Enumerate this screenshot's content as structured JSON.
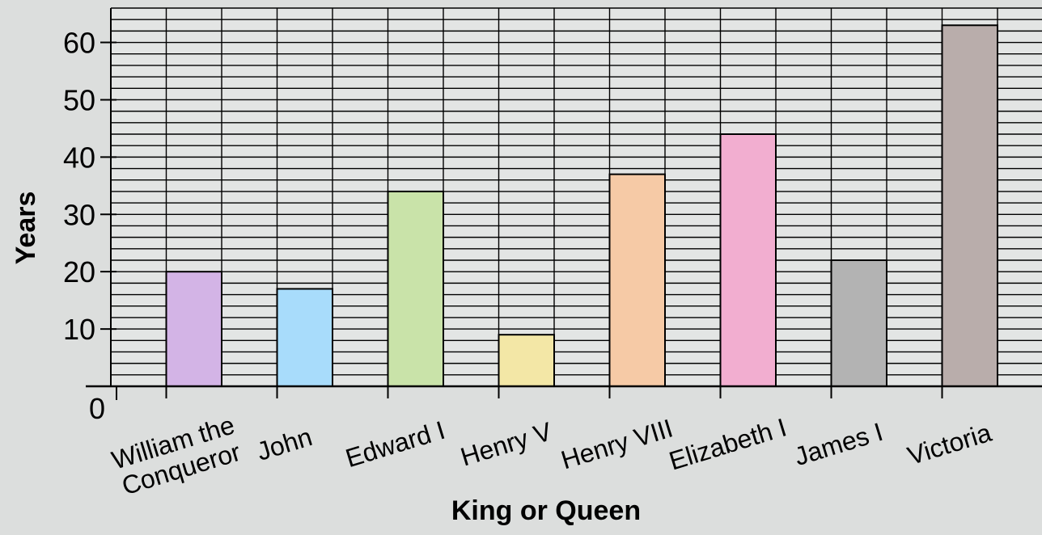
{
  "chart_data": {
    "type": "bar",
    "title": "",
    "xlabel": "King or Queen",
    "ylabel": "Years",
    "categories": [
      "William the Conqueror",
      "John",
      "Edward I",
      "Henry V",
      "Henry VIII",
      "Elizabeth I",
      "James I",
      "Victoria"
    ],
    "category_lines": [
      [
        "William the",
        "Conqueror"
      ],
      [
        "John"
      ],
      [
        "Edward I"
      ],
      [
        "Henry V"
      ],
      [
        "Henry VIII"
      ],
      [
        "Elizabeth I"
      ],
      [
        "James I"
      ],
      [
        "Victoria"
      ]
    ],
    "values": [
      20,
      17,
      34,
      9,
      37,
      44,
      22,
      63
    ],
    "ylim": [
      0,
      66
    ],
    "yticks": [
      0,
      10,
      20,
      30,
      40,
      50,
      60
    ],
    "minor_grid_step": 2,
    "grid": true,
    "legend": "none",
    "bar_colors": [
      "#d3b4e6",
      "#a8dcfb",
      "#c9e3a9",
      "#f3e7a6",
      "#f6caa6",
      "#f2aed0",
      "#b3b3b3",
      "#b9adab"
    ]
  }
}
